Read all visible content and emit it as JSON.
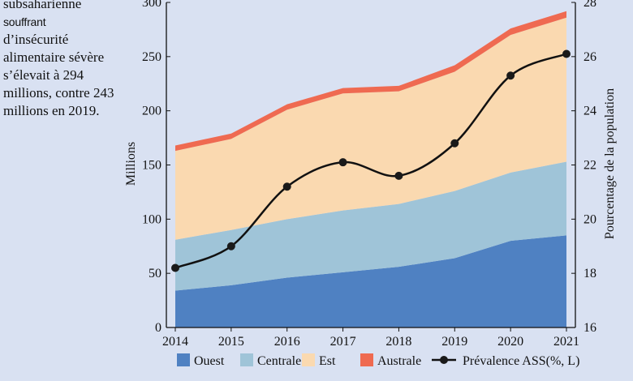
{
  "sidebar_text": {
    "lines": [
      "subsaharienne",
      "souffrant",
      "d’insécurité",
      "alimentaire sévère",
      "s’élevait à 294",
      "millions, contre 243",
      "millions en 2019."
    ]
  },
  "chart_data": {
    "type": "area",
    "stacked": true,
    "categories": [
      "2014",
      "2015",
      "2016",
      "2017",
      "2018",
      "2019",
      "2020",
      "2021"
    ],
    "series": [
      {
        "name": "Ouest",
        "color": "#4f81c2",
        "values": [
          34,
          39,
          46,
          51,
          56,
          64,
          80,
          85
        ]
      },
      {
        "name": "Centrale",
        "color": "#9fc4d8",
        "values": [
          47,
          51,
          54,
          57,
          58,
          62,
          63,
          68
        ]
      },
      {
        "name": "Est",
        "color": "#fad9b0",
        "values": [
          82,
          84,
          101,
          108,
          104,
          110,
          127,
          133
        ]
      },
      {
        "name": "Australe",
        "color": "#ef6a51",
        "values": [
          5,
          5,
          5,
          5,
          5,
          6,
          6,
          6
        ]
      }
    ],
    "line_series": {
      "name": "Prévalence ASS(%, L)",
      "color": "#111111",
      "axis": "right",
      "values": [
        18.2,
        19.0,
        21.2,
        22.1,
        21.6,
        22.8,
        25.3,
        26.1
      ]
    },
    "ylabel": "Millions",
    "ylim": [
      0,
      300
    ],
    "yticks": [
      0,
      50,
      100,
      150,
      200,
      250,
      300
    ],
    "y2label": "Pourcentage de  la population",
    "y2lim": [
      16,
      28
    ],
    "y2ticks": [
      16,
      18,
      20,
      22,
      24,
      26,
      28
    ],
    "grid": false,
    "legend_position": "bottom"
  }
}
